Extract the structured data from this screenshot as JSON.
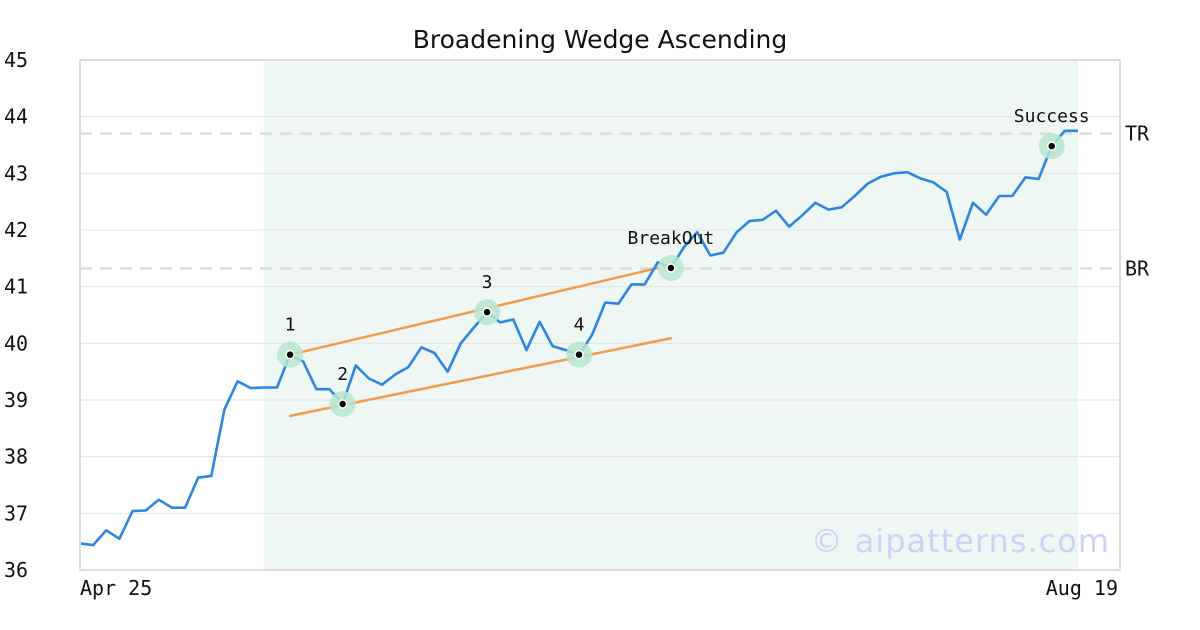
{
  "chart_data": {
    "type": "line",
    "title": "Broadening Wedge Ascending",
    "xlabel": "",
    "ylabel": "",
    "x_tick_labels": [
      "Apr 25",
      "Aug 19"
    ],
    "ylim": [
      36,
      45
    ],
    "y_ticks": [
      36,
      37,
      38,
      39,
      40,
      41,
      42,
      43,
      44,
      45
    ],
    "grid": "horizontal",
    "series": [
      {
        "values": [
          36.47,
          36.44,
          36.7,
          36.55,
          37.04,
          37.05,
          37.24,
          37.1,
          37.1,
          37.63,
          37.66,
          38.83,
          39.33,
          39.21,
          39.22,
          39.22,
          39.8,
          39.68,
          39.19,
          39.19,
          38.93,
          39.61,
          39.38,
          39.27,
          39.45,
          39.58,
          39.93,
          39.83,
          39.5,
          40.0,
          40.28,
          40.55,
          40.37,
          40.42,
          39.88,
          40.38,
          39.95,
          39.88,
          39.8,
          40.15,
          40.72,
          40.7,
          41.04,
          41.04,
          41.43,
          41.33,
          41.7,
          41.96,
          41.55,
          41.6,
          41.96,
          42.16,
          42.18,
          42.34,
          42.06,
          42.26,
          42.48,
          42.36,
          42.4,
          42.6,
          42.82,
          42.94,
          43.0,
          43.02,
          42.91,
          42.84,
          42.67,
          41.83,
          42.48,
          42.27,
          42.6,
          42.6,
          42.93,
          42.9,
          43.48,
          43.75,
          43.75
        ],
        "color": "#2e86de"
      }
    ],
    "shaded_region_index_range": [
      14,
      76
    ],
    "trend_lines": [
      {
        "from": [
          16,
          39.8
        ],
        "to": [
          44,
          41.33
        ],
        "color": "#f39c4a"
      },
      {
        "from": [
          16,
          38.72
        ],
        "to": [
          45,
          40.09
        ],
        "color": "#f39c4a"
      }
    ],
    "reference_levels": [
      {
        "label": "TR",
        "value": 43.7
      },
      {
        "label": "BR",
        "value": 41.32
      }
    ],
    "points": [
      {
        "label": "1",
        "index": 16,
        "value": 39.8
      },
      {
        "label": "2",
        "index": 20,
        "value": 38.93
      },
      {
        "label": "3",
        "index": 31,
        "value": 40.55
      },
      {
        "label": "4",
        "index": 38,
        "value": 39.8
      },
      {
        "label": "BreakOut",
        "index": 45,
        "value": 41.33
      },
      {
        "label": "Success",
        "index": 74,
        "value": 43.48
      }
    ],
    "watermark": "© aipatterns.com",
    "colors": {
      "line": "#2e86de",
      "trend": "#f39c4a",
      "shade": "#eef7f3",
      "marker_halo": "#b7e6cf",
      "grid": "#e4e4e4",
      "dash": "#dddddd",
      "watermark": "#cfd2f5"
    }
  }
}
